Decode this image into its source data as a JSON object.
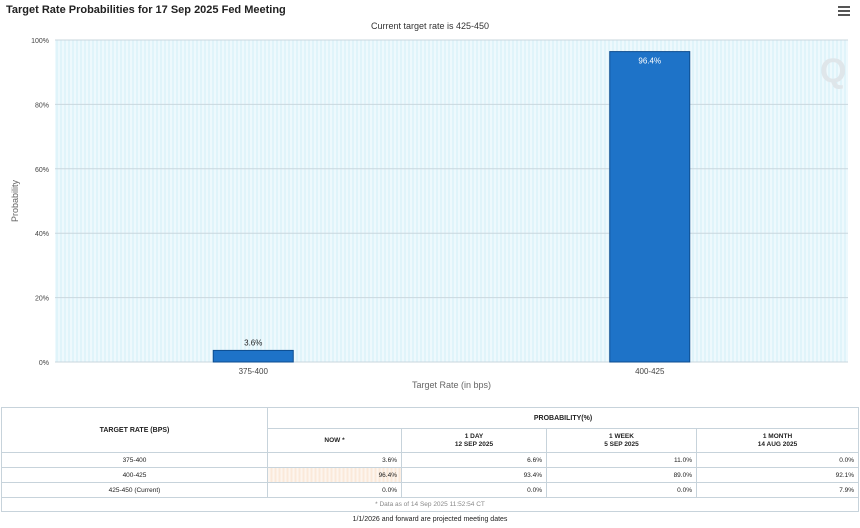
{
  "title": "Target Rate Probabilities for 17 Sep 2025 Fed Meeting",
  "subtitle": "Current target rate is 425-450",
  "watermark": "Q",
  "menu_icon": "hamburger-menu-icon",
  "colors": {
    "bar": "#1e73c8",
    "plot_bg": "#eef9fd",
    "now_cell": "#fbe9d9"
  },
  "chart_data": {
    "type": "bar",
    "categories": [
      "375-400",
      "400-425"
    ],
    "values": [
      3.6,
      96.4
    ],
    "value_labels": [
      "3.6%",
      "96.4%"
    ],
    "xlabel": "Target Rate (in bps)",
    "ylabel": "Probability",
    "ylim": [
      0,
      100
    ],
    "yticks": [
      "0%",
      "20%",
      "40%",
      "60%",
      "80%",
      "100%"
    ],
    "grid": true
  },
  "table": {
    "rate_header": "TARGET RATE (BPS)",
    "prob_header": "PROBABILITY(%)",
    "columns": [
      {
        "line1": "NOW *",
        "line2": ""
      },
      {
        "line1": "1 DAY",
        "line2": "12 SEP 2025"
      },
      {
        "line1": "1 WEEK",
        "line2": "5 SEP 2025"
      },
      {
        "line1": "1 MONTH",
        "line2": "14 AUG 2025"
      }
    ],
    "rows": [
      {
        "rate": "375-400",
        "values": [
          "3.6%",
          "6.6%",
          "11.0%",
          "0.0%"
        ]
      },
      {
        "rate": "400-425",
        "values": [
          "96.4%",
          "93.4%",
          "89.0%",
          "92.1%"
        ]
      },
      {
        "rate": "425-450 (Current)",
        "values": [
          "0.0%",
          "0.0%",
          "0.0%",
          "7.9%"
        ]
      }
    ],
    "footnote": "* Data as of 14 Sep 2025 11:52:54 CT"
  },
  "forward_note": "1/1/2026 and forward are projected meeting dates"
}
